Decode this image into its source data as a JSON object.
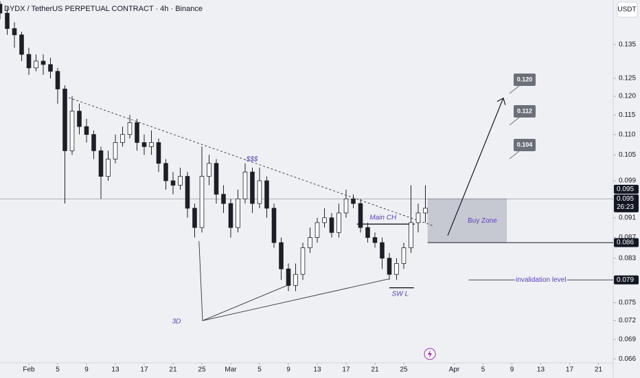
{
  "chart_data": {
    "type": "candlestick",
    "title": "DYDX / TetherUS PERPETUAL CONTRACT · 4h · Binance",
    "currency": "USDT",
    "color": "#1c1f26",
    "log_scale": true,
    "x": [
      -4,
      -3,
      -2,
      -1,
      0,
      1,
      2,
      3,
      4,
      5,
      6,
      7,
      8,
      9,
      10,
      11,
      12,
      13,
      14,
      15,
      16,
      17,
      18,
      19,
      20,
      21,
      22,
      23,
      24,
      25,
      26,
      27,
      28,
      29,
      30,
      31,
      32,
      33,
      34,
      35,
      36,
      37,
      38,
      39,
      40,
      41,
      42,
      43,
      44,
      45,
      46,
      47,
      48,
      49,
      50,
      51,
      52,
      53,
      54,
      55
    ],
    "open": [
      0.148,
      0.145,
      0.14,
      0.138,
      0.132,
      0.128,
      0.13,
      0.129,
      0.127,
      0.122,
      0.106,
      0.116,
      0.112,
      0.11,
      0.106,
      0.1,
      0.104,
      0.108,
      0.11,
      0.113,
      0.108,
      0.107,
      0.108,
      0.103,
      0.099,
      0.098,
      0.1,
      0.093,
      0.089,
      0.1,
      0.103,
      0.096,
      0.094,
      0.089,
      0.095,
      0.101,
      0.094,
      0.099,
      0.093,
      0.086,
      0.081,
      0.078,
      0.08,
      0.085,
      0.087,
      0.09,
      0.091,
      0.088,
      0.092,
      0.095,
      0.094,
      0.089,
      0.087,
      0.086,
      0.083,
      0.08,
      0.082,
      0.085,
      0.09,
      0.092
    ],
    "high": [
      0.149,
      0.147,
      0.142,
      0.139,
      0.134,
      0.132,
      0.132,
      0.131,
      0.128,
      0.123,
      0.12,
      0.118,
      0.114,
      0.111,
      0.107,
      0.106,
      0.11,
      0.112,
      0.115,
      0.114,
      0.11,
      0.111,
      0.109,
      0.104,
      0.101,
      0.102,
      0.101,
      0.094,
      0.107,
      0.105,
      0.104,
      0.098,
      0.095,
      0.097,
      0.103,
      0.102,
      0.102,
      0.1,
      0.094,
      0.087,
      0.082,
      0.082,
      0.086,
      0.089,
      0.091,
      0.093,
      0.092,
      0.094,
      0.097,
      0.096,
      0.095,
      0.09,
      0.088,
      0.087,
      0.084,
      0.083,
      0.086,
      0.098,
      0.094,
      0.098
    ],
    "low": [
      0.143,
      0.138,
      0.134,
      0.13,
      0.126,
      0.127,
      0.126,
      0.125,
      0.118,
      0.094,
      0.105,
      0.11,
      0.108,
      0.104,
      0.095,
      0.099,
      0.103,
      0.107,
      0.109,
      0.106,
      0.105,
      0.105,
      0.101,
      0.097,
      0.096,
      0.097,
      0.091,
      0.087,
      0.088,
      0.098,
      0.094,
      0.092,
      0.087,
      0.088,
      0.094,
      0.092,
      0.093,
      0.091,
      0.085,
      0.079,
      0.077,
      0.077,
      0.079,
      0.084,
      0.086,
      0.089,
      0.087,
      0.087,
      0.091,
      0.093,
      0.088,
      0.086,
      0.085,
      0.081,
      0.079,
      0.079,
      0.081,
      0.084,
      0.088,
      0.09
    ],
    "close": [
      0.145,
      0.14,
      0.138,
      0.132,
      0.128,
      0.13,
      0.129,
      0.127,
      0.122,
      0.106,
      0.116,
      0.112,
      0.11,
      0.106,
      0.1,
      0.104,
      0.108,
      0.11,
      0.113,
      0.108,
      0.107,
      0.108,
      0.103,
      0.099,
      0.098,
      0.1,
      0.093,
      0.089,
      0.1,
      0.103,
      0.096,
      0.094,
      0.089,
      0.095,
      0.101,
      0.094,
      0.099,
      0.093,
      0.086,
      0.081,
      0.078,
      0.08,
      0.085,
      0.087,
      0.09,
      0.091,
      0.088,
      0.092,
      0.095,
      0.094,
      0.089,
      0.087,
      0.086,
      0.083,
      0.08,
      0.082,
      0.085,
      0.09,
      0.092,
      0.093
    ],
    "xlim": [
      -4,
      81.05
    ],
    "ylim": [
      0.0654,
      0.1494
    ],
    "xticks": [
      {
        "value": 0,
        "label": "Feb"
      },
      {
        "value": 4,
        "label": "5"
      },
      {
        "value": 8,
        "label": "9"
      },
      {
        "value": 12,
        "label": "13"
      },
      {
        "value": 16,
        "label": "17"
      },
      {
        "value": 20,
        "label": "21"
      },
      {
        "value": 24,
        "label": "25"
      },
      {
        "value": 28,
        "label": "Mar"
      },
      {
        "value": 32,
        "label": "5"
      },
      {
        "value": 36,
        "label": "9"
      },
      {
        "value": 40,
        "label": "13"
      },
      {
        "value": 44,
        "label": "17"
      },
      {
        "value": 48,
        "label": "21"
      },
      {
        "value": 52,
        "label": "25"
      },
      {
        "value": 59,
        "label": "Apr"
      },
      {
        "value": 63,
        "label": "5"
      },
      {
        "value": 67,
        "label": "9"
      },
      {
        "value": 71,
        "label": "13"
      },
      {
        "value": 75,
        "label": "17"
      },
      {
        "value": 79,
        "label": "21"
      }
    ],
    "yticks": [
      0.135,
      0.125,
      {
        "value": 0.12,
        "label": "0.120"
      },
      0.115,
      {
        "value": 0.11,
        "label": "0.110"
      },
      0.105,
      0.099,
      0.091,
      0.087,
      0.083,
      0.075,
      0.072,
      0.069,
      0.066
    ],
    "current_price": 0.095,
    "price_badges": [
      {
        "value": 0.095
      },
      {
        "value": 0.095,
        "countdown": "26:23"
      },
      {
        "value": 0.086
      },
      {
        "value": 0.079
      }
    ],
    "trendline": {
      "x": [
        5,
        56
      ],
      "y": [
        0.12,
        0.0894
      ]
    },
    "arrow": {
      "x": [
        58.1,
        65.8
      ],
      "y": [
        0.0874,
        0.1195
      ]
    },
    "triangle": {
      "x": [
        23.6,
        24.1,
        36,
        24.1,
        50
      ],
      "y": [
        0.0863,
        0.072,
        0.0781,
        0.072,
        0.0792
      ]
    },
    "targets": [
      {
        "value": 0.12,
        "label": "0.120"
      },
      {
        "value": 0.112,
        "label": "0.112"
      },
      {
        "value": 0.104,
        "label": "0.104"
      }
    ],
    "buy_zone": {
      "label": "Buy Zone",
      "top": 0.095,
      "bottom": 0.086,
      "x": [
        55.3,
        66.3
      ]
    },
    "invalidation": {
      "label": "invalidation level",
      "value": 0.079,
      "x": [
        61,
        81.05
      ]
    },
    "main_ch": {
      "label": "Main CH",
      "value": 0.0897,
      "x": [
        45.5,
        53.5
      ]
    },
    "swing_low": {
      "label": "SW L",
      "value": 0.0776,
      "x": [
        50,
        53.4
      ]
    },
    "liquidity_label": "$$$",
    "timeframe_label": "3D"
  }
}
